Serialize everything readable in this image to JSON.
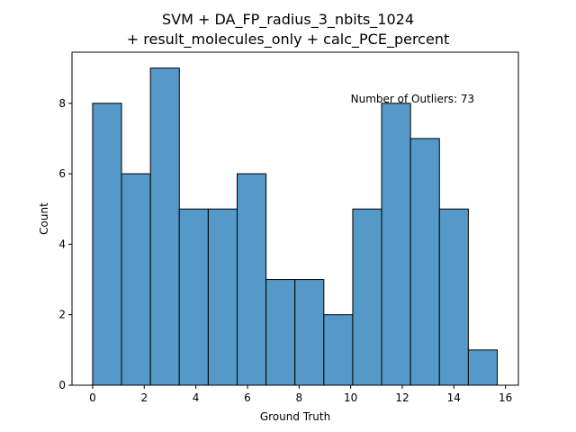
{
  "chart_data": {
    "type": "bar",
    "title_lines": [
      "SVM + DA_FP_radius_3_nbits_1024",
      "+ result_molecules_only + calc_PCE_percent"
    ],
    "xlabel": "Ground Truth",
    "ylabel": "Count",
    "xlim": [
      -0.8,
      16.5
    ],
    "ylim": [
      0,
      9.45
    ],
    "xticks": [
      0,
      2,
      4,
      6,
      8,
      10,
      12,
      14,
      16
    ],
    "yticks": [
      0,
      2,
      4,
      6,
      8
    ],
    "bins": [
      {
        "start": 0.0,
        "end": 1.12,
        "count": 8
      },
      {
        "start": 1.12,
        "end": 2.24,
        "count": 6
      },
      {
        "start": 2.24,
        "end": 3.36,
        "count": 9
      },
      {
        "start": 3.36,
        "end": 4.48,
        "count": 5
      },
      {
        "start": 4.48,
        "end": 5.6,
        "count": 5
      },
      {
        "start": 5.6,
        "end": 6.72,
        "count": 6
      },
      {
        "start": 6.72,
        "end": 7.84,
        "count": 3
      },
      {
        "start": 7.84,
        "end": 8.96,
        "count": 3
      },
      {
        "start": 8.96,
        "end": 10.08,
        "count": 2
      },
      {
        "start": 10.08,
        "end": 11.2,
        "count": 5
      },
      {
        "start": 11.2,
        "end": 12.32,
        "count": 8
      },
      {
        "start": 12.32,
        "end": 13.44,
        "count": 7
      },
      {
        "start": 13.44,
        "end": 14.56,
        "count": 5
      },
      {
        "start": 14.56,
        "end": 15.68,
        "count": 1
      }
    ],
    "bar_color": "#5599c8",
    "edge_color": "#000000",
    "grid": false,
    "annotation": {
      "text": "Number of Outliers: 73",
      "x": 10.0,
      "y": 8.0
    }
  }
}
